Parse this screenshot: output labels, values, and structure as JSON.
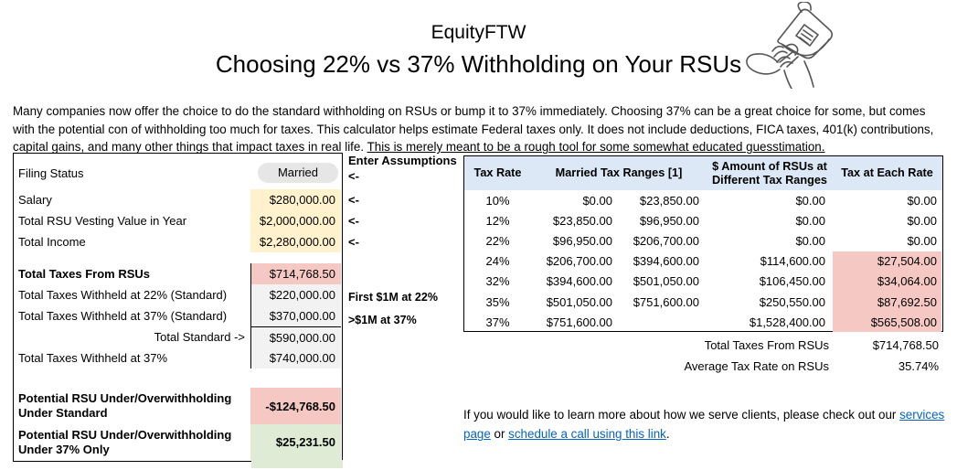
{
  "header": {
    "brand": "EquityFTW",
    "title": "Choosing 22% vs 37% Withholding on Your RSUs"
  },
  "intro": {
    "text_before": "Many companies now offer the choice to do the standard withholding on RSUs or bump it to 37% immediately. Choosing 37% can be a great choice for some, but comes with the potential con of withholding too much for taxes. This calculator helps estimate Federal taxes only. It does not include deductions, FICA taxes, 401(k) contributions, capital gains, and many other things that impact taxes in real life. ",
    "underlined": "This is merely meant to be a rough tool for some somewhat educated guesstimation."
  },
  "assumptions_panel": {
    "enter_assumptions_label": "Enter Assumptions",
    "arrow": "<-",
    "filing_status": {
      "label": "Filing Status",
      "value": "Married"
    },
    "inputs": [
      {
        "label": "Salary",
        "value": "$280,000.00"
      },
      {
        "label": "Total RSU Vesting Value in Year",
        "value": "$2,000,000.00"
      },
      {
        "label": "Total Income",
        "value": "$2,280,000.00"
      }
    ],
    "results": [
      {
        "label": "Total Taxes From RSUs",
        "value": "$714,768.50"
      },
      {
        "label": "Total Taxes Withheld at 22% (Standard)",
        "value": "$220,000.00",
        "note": "First $1M at 22%"
      },
      {
        "label": "Total Taxes Withheld at 37% (Standard)",
        "value": "$370,000.00",
        "note": ">$1M at 37%"
      },
      {
        "label": "Total Standard ->",
        "value": "$590,000.00"
      },
      {
        "label": "Total Taxes Withheld at 37%",
        "value": "$740,000.00"
      }
    ],
    "potentials": [
      {
        "label": "Potential RSU Under/Overwithholding Under Standard",
        "value": "-$124,768.50"
      },
      {
        "label": "Potential RSU Under/Overwithholding Under 37% Only",
        "value": "$25,231.50"
      }
    ]
  },
  "tax_table": {
    "headers": [
      "Tax Rate",
      "Married Tax Ranges [1]",
      "$ Amount of RSUs at Different Tax Ranges",
      "Tax at Each Rate"
    ],
    "rows": [
      {
        "rate": "10%",
        "range_low": "$0.00",
        "range_high": "$23,850.00",
        "rsu_amount": "$0.00",
        "tax": "$0.00",
        "highlight": false
      },
      {
        "rate": "12%",
        "range_low": "$23,850.00",
        "range_high": "$96,950.00",
        "rsu_amount": "$0.00",
        "tax": "$0.00",
        "highlight": false
      },
      {
        "rate": "22%",
        "range_low": "$96,950.00",
        "range_high": "$206,700.00",
        "rsu_amount": "$0.00",
        "tax": "$0.00",
        "highlight": false
      },
      {
        "rate": "24%",
        "range_low": "$206,700.00",
        "range_high": "$394,600.00",
        "rsu_amount": "$114,600.00",
        "tax": "$27,504.00",
        "highlight": true
      },
      {
        "rate": "32%",
        "range_low": "$394,600.00",
        "range_high": "$501,050.00",
        "rsu_amount": "$106,450.00",
        "tax": "$34,064.00",
        "highlight": true
      },
      {
        "rate": "35%",
        "range_low": "$501,050.00",
        "range_high": "$751,600.00",
        "rsu_amount": "$250,550.00",
        "tax": "$87,692.50",
        "highlight": true
      },
      {
        "rate": "37%",
        "range_low": "$751,600.00",
        "range_high": "",
        "rsu_amount": "$1,528,400.00",
        "tax": "$565,508.00",
        "highlight": true
      }
    ],
    "summary": [
      {
        "label": "Total Taxes From RSUs",
        "value": "$714,768.50"
      },
      {
        "label": "Average Tax Rate on RSUs",
        "value": "35.74%"
      }
    ]
  },
  "footer": {
    "text_before": "If you would like to learn more about how we serve clients, please check out our ",
    "link1": "services page",
    "middle": " or ",
    "link2": "schedule a call using this link",
    "after": "."
  },
  "colors": {
    "input_yellow": "#FFF2CC",
    "negative_pink": "#F5C8C4",
    "positive_green": "#DFEBD4",
    "neutral_grey": "#F2F2F2",
    "header_blue": "#DCE8F5",
    "dropdown_grey": "#E7E6E6",
    "link_blue": "#0563C1"
  }
}
